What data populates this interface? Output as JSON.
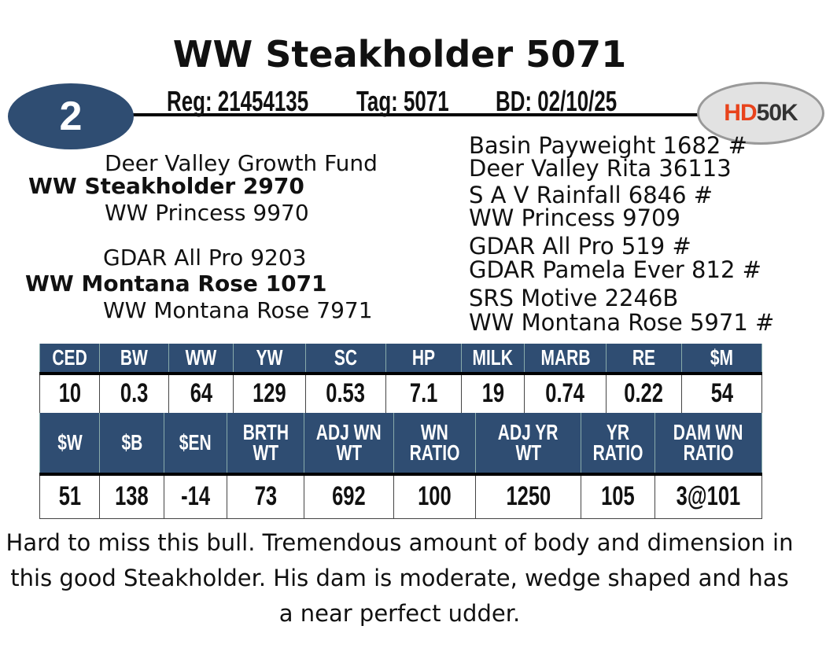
{
  "title": "WW Steakholder 5071",
  "lot_number": "2",
  "reg": "Reg: 21454135",
  "tag": "Tag: 5071",
  "bd": "BD: 02/10/25",
  "logo": {
    "hd": "HD",
    "k50": "50K",
    "hd_color": "#e8431c",
    "k_color": "#333333"
  },
  "pedigree": {
    "sire": "WW Steakholder 2970",
    "sire_sire": "Deer Valley Growth Fund",
    "sire_dam": "WW Princess 9970",
    "dam": "WW Montana Rose 1071",
    "dam_sire": "GDAR All Pro 9203",
    "dam_dam": "WW Montana Rose 7971",
    "right": [
      "Basin Payweight 1682 #",
      "Deer Valley Rita 36113",
      "S A V Rainfall 6846 #",
      "WW Princess 9709",
      "GDAR All Pro 519 #",
      "GDAR Pamela Ever 812 #",
      "SRS Motive 2246B",
      "WW Montana Rose 5971 #"
    ]
  },
  "epd_table": {
    "headers": [
      "CED",
      "BW",
      "WW",
      "YW",
      "SC",
      "HP",
      "MILK",
      "MARB",
      "RE",
      "$M"
    ],
    "values": [
      "10",
      "0.3",
      "64",
      "129",
      "0.53",
      "7.1",
      "19",
      "0.74",
      "0.22",
      "54"
    ]
  },
  "perf_table": {
    "headers": [
      [
        "$W",
        ""
      ],
      [
        "$B",
        ""
      ],
      [
        "$EN",
        ""
      ],
      [
        "BRTH",
        "WT"
      ],
      [
        "ADJ WN",
        "WT"
      ],
      [
        "WN",
        "RATIO"
      ],
      [
        "ADJ YR",
        "WT"
      ],
      [
        "YR",
        "RATIO"
      ],
      [
        "DAM WN",
        "RATIO"
      ]
    ],
    "values": [
      "51",
      "138",
      "-14",
      "73",
      "692",
      "100",
      "1250",
      "105",
      "3@101"
    ]
  },
  "header_color": "#2f4d72",
  "description": "Hard to miss this bull.  Tremendous amount of body and dimension in this good Steakholder.  His dam is moderate, wedge shaped and has a near perfect udder."
}
